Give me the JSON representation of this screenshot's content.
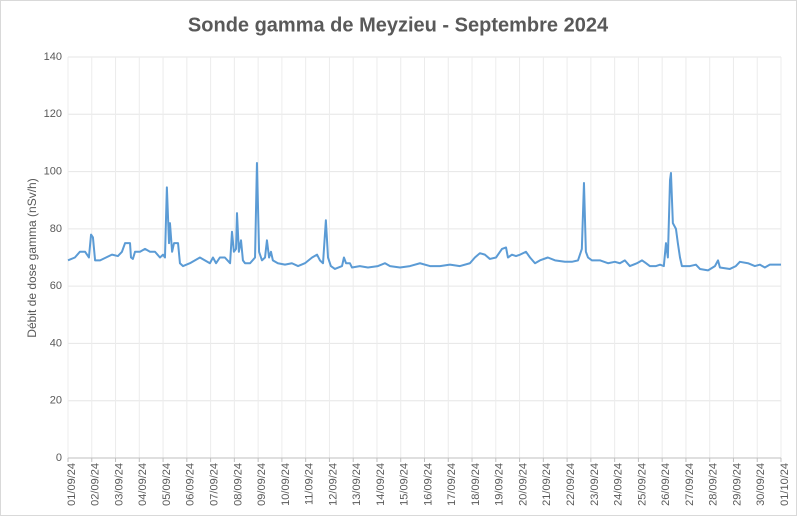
{
  "chart_data": {
    "type": "line",
    "title": "Sonde gamma de Meyzieu - Septembre 2024",
    "y_label": "Débit de dose gamma (nSv/h)",
    "grid": true,
    "xlim": [
      0,
      30
    ],
    "ylim": [
      0,
      140
    ],
    "yticks": [
      0,
      20,
      40,
      60,
      80,
      100,
      120,
      140
    ],
    "xticks": [
      {
        "value": 0,
        "label": "01/09/24"
      },
      {
        "value": 1,
        "label": "02/09/24"
      },
      {
        "value": 2,
        "label": "03/09/24"
      },
      {
        "value": 3,
        "label": "04/09/24"
      },
      {
        "value": 4,
        "label": "05/09/24"
      },
      {
        "value": 5,
        "label": "06/09/24"
      },
      {
        "value": 6,
        "label": "07/09/24"
      },
      {
        "value": 7,
        "label": "08/09/24"
      },
      {
        "value": 8,
        "label": "09/09/24"
      },
      {
        "value": 9,
        "label": "10/09/24"
      },
      {
        "value": 10,
        "label": "11/09/24"
      },
      {
        "value": 11,
        "label": "12/09/24"
      },
      {
        "value": 12,
        "label": "13/09/24"
      },
      {
        "value": 13,
        "label": "14/09/24"
      },
      {
        "value": 14,
        "label": "15/09/24"
      },
      {
        "value": 15,
        "label": "16/09/24"
      },
      {
        "value": 16,
        "label": "17/09/24"
      },
      {
        "value": 17,
        "label": "18/09/24"
      },
      {
        "value": 18,
        "label": "19/09/24"
      },
      {
        "value": 19,
        "label": "20/09/24"
      },
      {
        "value": 20,
        "label": "21/09/24"
      },
      {
        "value": 21,
        "label": "22/09/24"
      },
      {
        "value": 22,
        "label": "23/09/24"
      },
      {
        "value": 23,
        "label": "24/09/24"
      },
      {
        "value": 24,
        "label": "25/09/24"
      },
      {
        "value": 25,
        "label": "26/09/24"
      },
      {
        "value": 26,
        "label": "27/09/24"
      },
      {
        "value": 27,
        "label": "28/09/24"
      },
      {
        "value": 28,
        "label": "29/09/24"
      },
      {
        "value": 29,
        "label": "30/09/24"
      },
      {
        "value": 30,
        "label": "01/10/24"
      }
    ],
    "x": [
      0,
      0.29,
      0.5,
      0.72,
      0.88,
      0.97,
      1.05,
      1.14,
      1.35,
      1.6,
      1.85,
      2.1,
      2.27,
      2.4,
      2.61,
      2.65,
      2.73,
      2.82,
      3.03,
      3.24,
      3.45,
      3.66,
      3.87,
      4.0,
      4.08,
      4.16,
      4.25,
      4.29,
      4.38,
      4.46,
      4.63,
      4.71,
      4.84,
      5.13,
      5.55,
      5.76,
      5.97,
      6.1,
      6.23,
      6.39,
      6.6,
      6.82,
      6.9,
      6.98,
      7.07,
      7.11,
      7.19,
      7.28,
      7.36,
      7.45,
      7.66,
      7.87,
      7.95,
      8.04,
      8.16,
      8.29,
      8.37,
      8.46,
      8.54,
      8.62,
      8.83,
      9.13,
      9.42,
      9.68,
      9.97,
      10.27,
      10.48,
      10.6,
      10.73,
      10.85,
      10.94,
      11.06,
      11.23,
      11.53,
      11.61,
      11.7,
      11.86,
      11.95,
      12.28,
      12.62,
      13.04,
      13.34,
      13.55,
      13.97,
      14.39,
      14.81,
      15.23,
      15.65,
      16.07,
      16.49,
      16.91,
      17.12,
      17.33,
      17.54,
      17.75,
      18.01,
      18.26,
      18.43,
      18.51,
      18.68,
      18.85,
      19.02,
      19.27,
      19.44,
      19.65,
      19.86,
      20.19,
      20.49,
      20.91,
      21.2,
      21.46,
      21.62,
      21.71,
      21.79,
      21.88,
      22.04,
      22.38,
      22.72,
      23.01,
      23.22,
      23.43,
      23.64,
      23.94,
      24.15,
      24.32,
      24.48,
      24.74,
      24.91,
      25.07,
      25.16,
      25.24,
      25.33,
      25.37,
      25.45,
      25.58,
      25.66,
      25.75,
      25.83,
      26.17,
      26.42,
      26.59,
      26.93,
      27.22,
      27.35,
      27.43,
      27.85,
      28.1,
      28.27,
      28.61,
      28.9,
      29.11,
      29.32,
      29.53,
      30.0
    ],
    "series": [
      {
        "color": "#5b9bd5",
        "values": [
          69,
          70,
          72,
          72,
          70,
          78,
          77,
          69,
          69,
          70,
          71,
          70.5,
          72,
          75,
          75,
          70,
          69.5,
          72,
          72,
          73,
          72,
          72,
          70,
          71,
          70,
          94.5,
          75,
          82,
          72,
          75,
          75,
          68,
          67,
          68,
          70,
          69,
          68,
          70,
          68,
          70,
          70,
          68,
          79,
          72,
          73,
          85.5,
          72,
          76,
          69,
          68,
          68,
          70,
          103,
          72,
          69,
          70,
          76,
          70,
          72,
          69,
          68,
          67.5,
          68,
          67,
          68,
          70,
          71,
          69,
          68,
          83,
          70,
          67,
          66,
          67,
          70,
          68,
          68,
          66.5,
          67,
          66.5,
          67,
          68,
          67,
          66.5,
          67,
          68,
          67,
          67,
          67.5,
          67,
          68,
          70,
          71.5,
          71,
          69.5,
          70,
          73,
          73.5,
          70,
          71,
          70.5,
          71,
          72,
          70,
          68,
          69,
          70,
          69,
          68.5,
          68.5,
          69,
          73,
          96,
          72,
          70,
          69,
          69,
          68,
          68.5,
          68,
          69,
          67,
          68,
          69,
          68,
          67,
          67,
          67.5,
          67,
          75,
          70,
          97,
          99.5,
          82,
          80,
          75,
          70,
          67,
          67,
          67.5,
          66,
          65.5,
          67,
          69,
          66.5,
          66,
          67,
          68.5,
          68,
          67,
          67.5,
          66.5,
          67.5,
          67.5
        ]
      }
    ]
  }
}
